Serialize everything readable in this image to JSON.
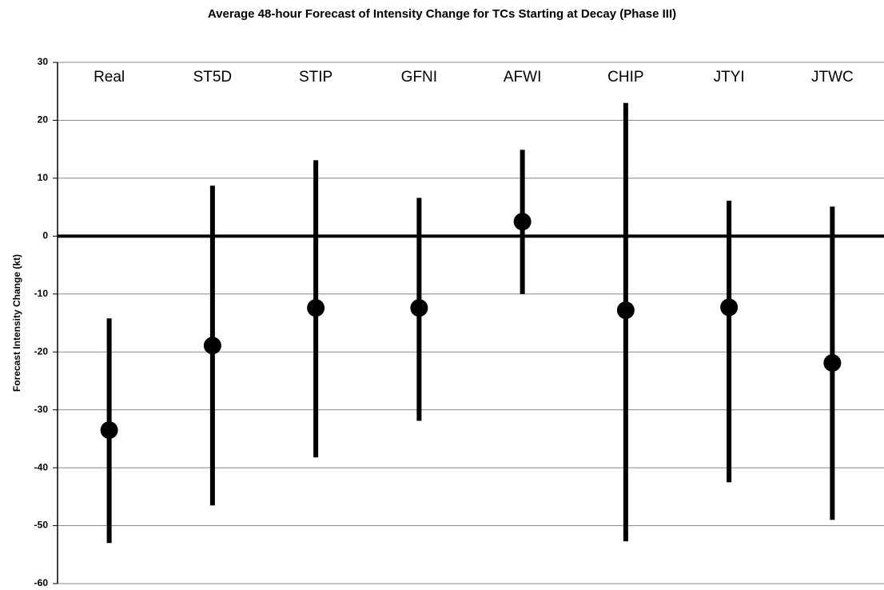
{
  "chart_data": {
    "type": "errorbar",
    "title": "Average 48-hour Forecast of Intensity Change for TCs Starting at Decay (Phase III)",
    "y_label": "Forecast Intensity Change (kt)",
    "categories": [
      "Real",
      "ST5D",
      "STIP",
      "GFNI",
      "AFWI",
      "CHIP",
      "JTYI",
      "JTWC"
    ],
    "values": [
      -33.5,
      -18.9,
      -12.4,
      -12.4,
      2.5,
      -12.8,
      -12.3,
      -21.9
    ],
    "low": [
      -53,
      -46.5,
      -38.2,
      -31.9,
      -10,
      -52.7,
      -42.5,
      -49
    ],
    "high": [
      -14.2,
      8.7,
      13.1,
      6.6,
      14.9,
      23,
      6.1,
      5.1
    ],
    "color": "#000000",
    "ylim": [
      -60,
      30
    ],
    "yticks": [
      -60,
      -50,
      -40,
      -30,
      -20,
      -10,
      0,
      10,
      20,
      30
    ],
    "grid": true,
    "zero_line": true
  }
}
